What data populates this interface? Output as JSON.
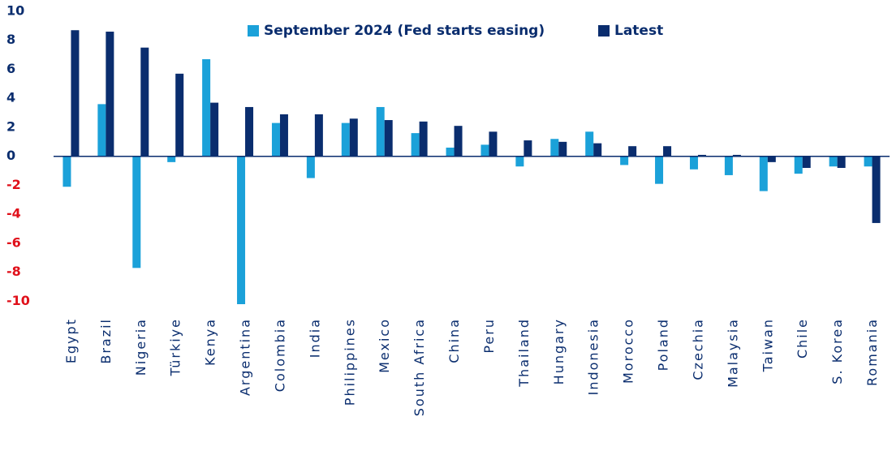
{
  "chart_data": {
    "type": "bar",
    "categories": [
      "Egypt",
      "Brazil",
      "Nigeria",
      "Türkiye",
      "Kenya",
      "Argentina",
      "Colombia",
      "India",
      "Philippines",
      "Mexico",
      "South Africa",
      "China",
      "Peru",
      "Thailand",
      "Hungary",
      "Indonesia",
      "Morocco",
      "Poland",
      "Czechia",
      "Malaysia",
      "Taiwan",
      "Chile",
      "S. Korea",
      "Romania"
    ],
    "series": [
      {
        "name": "September 2024 (Fed starts easing)",
        "color": "#1ba1d9",
        "values": [
          -2.1,
          3.6,
          -7.7,
          -0.4,
          6.7,
          -10.2,
          2.3,
          -1.5,
          2.3,
          3.4,
          1.6,
          0.6,
          0.8,
          -0.7,
          1.2,
          1.7,
          -0.6,
          -1.9,
          -0.9,
          -1.3,
          -2.4,
          -1.2,
          -0.7,
          -0.7
        ]
      },
      {
        "name": "Latest",
        "color": "#0a2d6e",
        "values": [
          8.7,
          8.6,
          7.5,
          5.7,
          3.7,
          3.4,
          2.9,
          2.9,
          2.6,
          2.5,
          2.4,
          2.1,
          1.7,
          1.1,
          1.0,
          0.9,
          0.7,
          0.7,
          0.1,
          0.1,
          -0.4,
          -0.8,
          -0.8,
          -4.6
        ]
      }
    ],
    "ylim": [
      -10.2,
      10
    ],
    "yticks": [
      -10,
      -8,
      -6,
      -4,
      -2,
      0,
      2,
      4,
      6,
      8,
      10
    ],
    "grid": false,
    "legend": "top"
  }
}
